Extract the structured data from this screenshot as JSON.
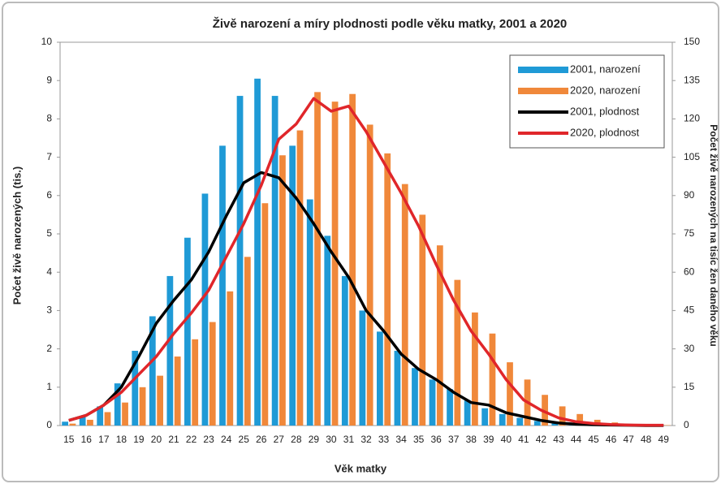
{
  "chart_data": {
    "type": "bar_line",
    "title": "Živě narození a míry plodnosti podle věku matky, 2001 a 2020",
    "x_label": "Věk matky",
    "y_label": "Počet živě narozených (tis.)",
    "y2_label": "Počet živě narozených na tisíc žen daného věku",
    "categories": [
      "15",
      "16",
      "17",
      "18",
      "19",
      "20",
      "21",
      "22",
      "23",
      "24",
      "25",
      "26",
      "27",
      "28",
      "29",
      "30",
      "31",
      "32",
      "33",
      "34",
      "35",
      "36",
      "37",
      "38",
      "39",
      "40",
      "41",
      "42",
      "43",
      "44",
      "45",
      "46",
      "47",
      "48",
      "49"
    ],
    "ylim": [
      0,
      10
    ],
    "yticks": [
      0,
      1,
      2,
      3,
      4,
      5,
      6,
      7,
      8,
      9,
      10
    ],
    "y2lim": [
      0,
      150
    ],
    "y2ticks": [
      0,
      15,
      30,
      45,
      60,
      75,
      90,
      105,
      120,
      135,
      150
    ],
    "legend": "top-right",
    "series": [
      {
        "name": "2001, narození",
        "color": "#1f9ad6",
        "kind": "bar",
        "values": [
          0.1,
          0.25,
          0.5,
          1.1,
          1.95,
          2.85,
          3.9,
          4.9,
          6.05,
          7.3,
          8.6,
          9.05,
          8.6,
          7.3,
          5.9,
          4.95,
          3.9,
          3.0,
          2.45,
          1.95,
          1.5,
          1.2,
          0.95,
          0.65,
          0.45,
          0.3,
          0.2,
          0.12,
          0.07,
          0.04,
          0.02,
          0.01,
          0.01,
          0,
          0
        ]
      },
      {
        "name": "2020, narození",
        "color": "#f0883a",
        "kind": "bar",
        "values": [
          0.05,
          0.15,
          0.35,
          0.6,
          1.0,
          1.3,
          1.8,
          2.25,
          2.7,
          3.5,
          4.4,
          5.8,
          7.05,
          7.7,
          8.7,
          8.45,
          8.65,
          7.85,
          7.1,
          6.3,
          5.5,
          4.7,
          3.8,
          2.95,
          2.4,
          1.65,
          1.2,
          0.8,
          0.5,
          0.3,
          0.15,
          0.08,
          0.04,
          0.02,
          0.01
        ]
      },
      {
        "name": "2001, plodnost",
        "color": "#000000",
        "kind": "line",
        "axis": "y2",
        "values": [
          2,
          4,
          8,
          15,
          27,
          40,
          49,
          57,
          68,
          82,
          95,
          99,
          97,
          89,
          79,
          68,
          58,
          45,
          37,
          28,
          22,
          18,
          13,
          9,
          8,
          5,
          3.5,
          2,
          1,
          0.5,
          0.3,
          0.2,
          0.1,
          0,
          0
        ]
      },
      {
        "name": "2020, plodnost",
        "color": "#e0262a",
        "kind": "line",
        "axis": "y2",
        "values": [
          2,
          4,
          8,
          13,
          20,
          27,
          36,
          44,
          53,
          66,
          79,
          94,
          112,
          118,
          128,
          123,
          125,
          115,
          103,
          91,
          78,
          63,
          49,
          37,
          28,
          18,
          10,
          6,
          3,
          1.5,
          0.8,
          0.4,
          0.2,
          0.1,
          0.1
        ]
      }
    ]
  }
}
